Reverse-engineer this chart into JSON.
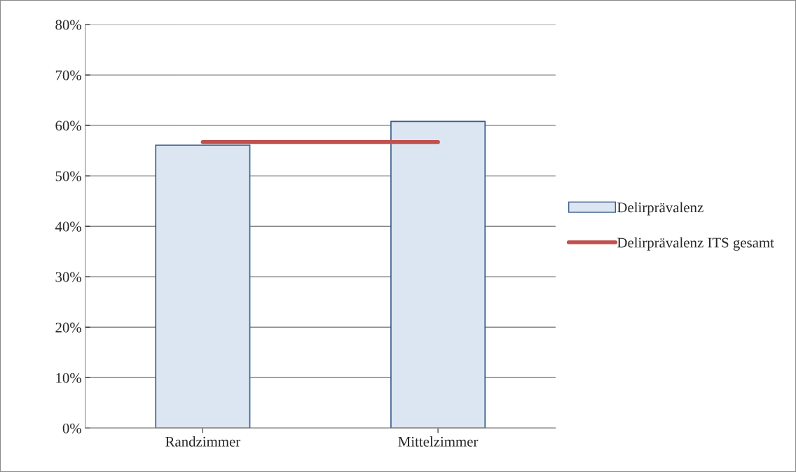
{
  "chart_data": {
    "type": "bar",
    "categories": [
      "Randzimmer",
      "Mittelzimmer"
    ],
    "series": [
      {
        "name": "Delirprävalenz",
        "color": "#dce6f2",
        "values": [
          56.1,
          60.8
        ]
      },
      {
        "name": "Delirprävalenz ITS gesamt",
        "type": "line",
        "color": "#c0504d",
        "values": [
          56.7,
          56.7
        ]
      }
    ],
    "ylim": [
      0,
      80
    ],
    "yticks": [
      {
        "value": 0,
        "label": "0%"
      },
      {
        "value": 10,
        "label": "10%"
      },
      {
        "value": 20,
        "label": "20%"
      },
      {
        "value": 30,
        "label": "30%"
      },
      {
        "value": 40,
        "label": "40%"
      },
      {
        "value": 50,
        "label": "50%"
      },
      {
        "value": 60,
        "label": "60%"
      },
      {
        "value": 70,
        "label": "70%"
      },
      {
        "value": 80,
        "label": "80%"
      }
    ],
    "grid": "y",
    "legend": "right",
    "marker": "none",
    "line_style": "solid"
  }
}
